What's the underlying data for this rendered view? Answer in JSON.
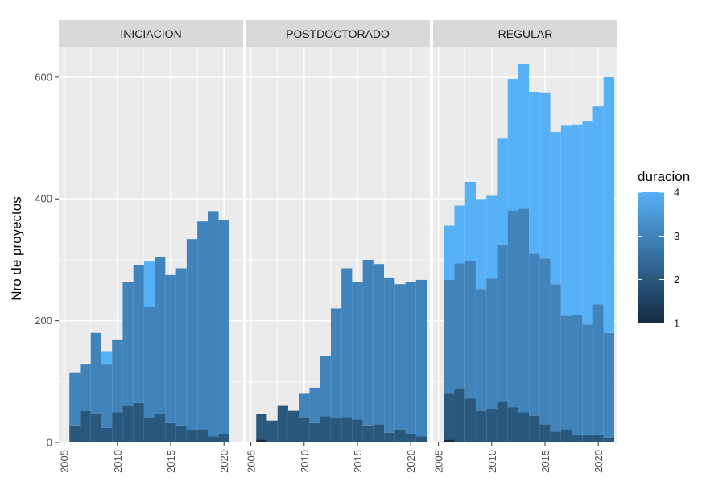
{
  "chart_data": {
    "type": "bar",
    "stacked": true,
    "ylabel": "Nro de proyectos",
    "xlabel": "",
    "ylim": [
      0,
      650
    ],
    "yticks": [
      0,
      200,
      400,
      600
    ],
    "xticks": [
      2005,
      2010,
      2015,
      2020
    ],
    "xlim": [
      2004.5,
      2021.8
    ],
    "legend": {
      "title": "duracion",
      "position": "right",
      "labels": [
        "4",
        "3",
        "2",
        "1"
      ],
      "scale_min": 1,
      "scale_max": 4,
      "low_color": "#132b43",
      "high_color": "#56b1f7"
    },
    "panels": [
      {
        "title": "INICIACION",
        "years": [
          2006,
          2007,
          2008,
          2009,
          2010,
          2011,
          2012,
          2013,
          2014,
          2015,
          2016,
          2017,
          2018,
          2019,
          2020
        ],
        "d1": [
          0,
          0,
          0,
          0,
          0,
          0,
          0,
          0,
          0,
          0,
          0,
          0,
          0,
          0,
          0
        ],
        "d2": [
          28,
          52,
          48,
          24,
          50,
          60,
          65,
          40,
          47,
          32,
          28,
          20,
          22,
          10,
          14
        ],
        "d3": [
          86,
          76,
          132,
          104,
          118,
          203,
          227,
          183,
          257,
          243,
          258,
          314,
          341,
          370,
          352
        ],
        "d4": [
          0,
          0,
          0,
          22,
          0,
          0,
          0,
          74,
          0,
          0,
          0,
          0,
          0,
          0,
          0
        ]
      },
      {
        "title": "POSTDOCTORADO",
        "years": [
          2006,
          2007,
          2008,
          2009,
          2010,
          2011,
          2012,
          2013,
          2014,
          2015,
          2016,
          2017,
          2018,
          2019,
          2020,
          2021
        ],
        "d1": [
          5,
          0,
          0,
          0,
          0,
          0,
          0,
          0,
          0,
          0,
          0,
          0,
          0,
          0,
          0,
          0
        ],
        "d2": [
          42,
          36,
          60,
          52,
          40,
          32,
          43,
          40,
          42,
          38,
          28,
          30,
          16,
          20,
          14,
          10
        ],
        "d3": [
          0,
          0,
          0,
          0,
          40,
          58,
          99,
          180,
          244,
          226,
          272,
          263,
          255,
          240,
          250,
          257
        ],
        "d4": [
          0,
          0,
          0,
          0,
          0,
          0,
          0,
          0,
          0,
          0,
          0,
          0,
          0,
          0,
          0,
          0
        ]
      },
      {
        "title": "REGULAR",
        "years": [
          2006,
          2007,
          2008,
          2009,
          2010,
          2011,
          2012,
          2013,
          2014,
          2015,
          2016,
          2017,
          2018,
          2019,
          2020,
          2021
        ],
        "d1": [
          5,
          0,
          0,
          0,
          0,
          0,
          0,
          0,
          0,
          0,
          0,
          0,
          0,
          0,
          0,
          0
        ],
        "d2": [
          75,
          88,
          72,
          52,
          55,
          67,
          58,
          50,
          44,
          30,
          18,
          22,
          12,
          12,
          12,
          8
        ],
        "d3": [
          187,
          206,
          226,
          200,
          214,
          257,
          323,
          334,
          266,
          272,
          242,
          186,
          198,
          182,
          215,
          172
        ],
        "d4": [
          89,
          95,
          130,
          148,
          136,
          175,
          216,
          237,
          266,
          273,
          250,
          312,
          312,
          333,
          325,
          420
        ]
      }
    ]
  }
}
